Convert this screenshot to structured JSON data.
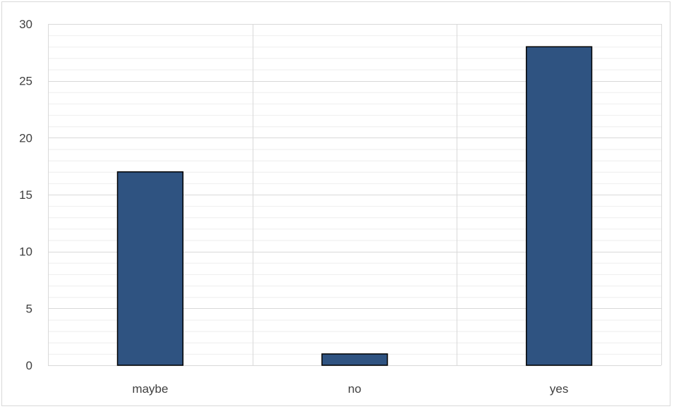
{
  "chart_data": {
    "type": "bar",
    "categories": [
      "maybe",
      "no",
      "yes"
    ],
    "values": [
      17,
      1,
      28
    ],
    "ylim": [
      0,
      30
    ],
    "y_major_ticks": [
      0,
      5,
      10,
      15,
      20,
      25,
      30
    ],
    "y_minor_step": 1,
    "grid": true,
    "bar_color": "#2f5381",
    "bar_edge_color": "#000000",
    "major_grid_color": "#d9d9d9",
    "minor_grid_color": "#eeeeee",
    "axis_label_color": "#404040"
  }
}
